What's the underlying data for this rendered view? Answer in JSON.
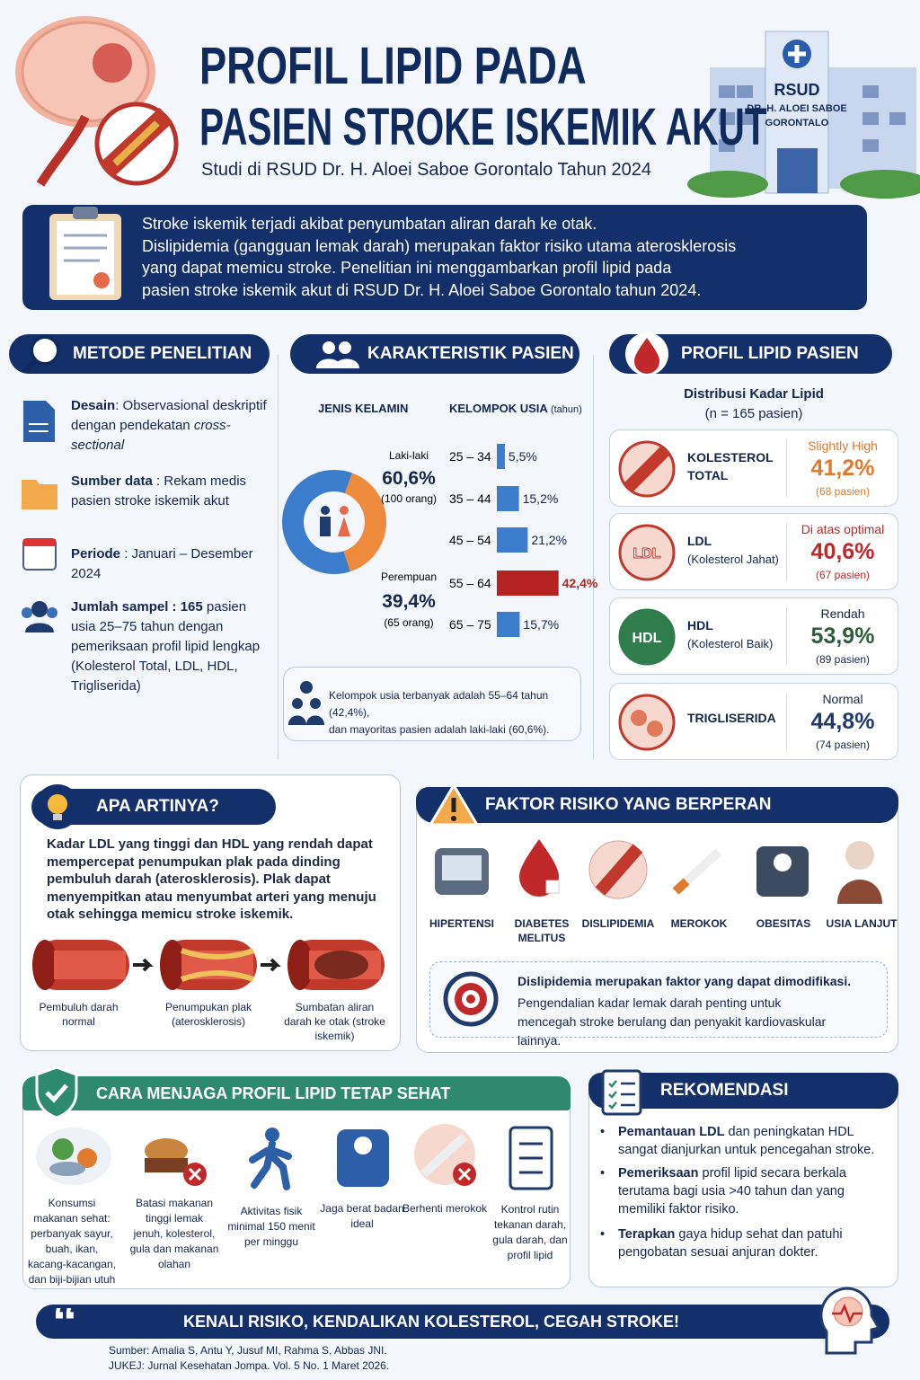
{
  "header": {
    "title_line1": "PROFIL LIPID PADA",
    "title_line2": "PASIEN STROKE ISKEMIK AKUT",
    "subtitle": "Studi di RSUD Dr. H. Aloei Saboe Gorontalo Tahun 2024",
    "hospital": {
      "name": "RSUD",
      "line2": "DR. H. ALOEI SABOE",
      "line3": "GORONTALO"
    }
  },
  "intro": {
    "lines": [
      "Stroke iskemik terjadi akibat penyumbatan aliran darah ke otak.",
      "Dislipidemia (gangguan lemak darah) merupakan faktor risiko utama aterosklerosis",
      "yang dapat memicu stroke. Penelitian ini menggambarkan profil lipid pada",
      "pasien stroke iskemik akut di RSUD Dr. H. Aloei Saboe Gorontalo tahun 2024."
    ]
  },
  "methods": {
    "title": "METODE PENELITIAN",
    "items": [
      {
        "label": "Desain",
        "text": ": Observasional deskriptif dengan pendekatan",
        "italic": "cross-sectional"
      },
      {
        "label": "Sumber data",
        "text": ": Rekam medis pasien stroke iskemik akut"
      },
      {
        "label": "Periode",
        "text": ": Januari – Desember 2024"
      },
      {
        "label": "Jumlah sampel : 165",
        "text": "pasien usia 25–75 tahun dengan pemeriksaan profil lipid lengkap (Kolesterol Total, LDL, HDL, Trigliserida)"
      }
    ]
  },
  "characteristics": {
    "title": "KARAKTERISTIK PASIEN",
    "gender": {
      "heading": "JENIS KELAMIN",
      "segments": [
        {
          "label": "Laki-laki",
          "value": 60.6,
          "value_label": "60,6%",
          "count": "(100 orang)",
          "color": "#3b7ccc"
        },
        {
          "label": "Perempuan",
          "value": 39.4,
          "value_label": "39,4%",
          "count": "(65 orang)",
          "color": "#ee8a3c"
        }
      ]
    },
    "age": {
      "heading": "KELOMPOK USIA",
      "unit": "(tahun)",
      "groups": [
        {
          "range": "25 – 34",
          "value": 5.5,
          "value_label": "5,5%",
          "color": "#3b7ccc",
          "highlight": false
        },
        {
          "range": "35 – 44",
          "value": 15.2,
          "value_label": "15,2%",
          "color": "#3b7ccc",
          "highlight": false
        },
        {
          "range": "45 – 54",
          "value": 21.2,
          "value_label": "21,2%",
          "color": "#3b7ccc",
          "highlight": false
        },
        {
          "range": "55 – 64",
          "value": 42.4,
          "value_label": "42,4%",
          "color": "#b52222",
          "highlight": true
        },
        {
          "range": "65 – 75",
          "value": 15.7,
          "value_label": "15,7%",
          "color": "#3b7ccc",
          "highlight": false
        }
      ]
    },
    "note": [
      "Kelompok usia terbanyak adalah 55–64 tahun (42,4%),",
      "dan mayoritas pasien adalah laki-laki (60,6%)."
    ]
  },
  "lipid": {
    "title": "PROFIL LIPID PASIEN",
    "subtitle": "Distribusi Kadar Lipid",
    "n": "(n = 165 pasien)",
    "cards": [
      {
        "name": "KOLESTEROL",
        "name2": "TOTAL",
        "status": "Slightly High",
        "percent": "41,2%",
        "count": "(68 pasien)",
        "color": "#e07a2e"
      },
      {
        "name": "LDL",
        "sub": "(Kolesterol Jahat)",
        "status": "Di atas optimal",
        "percent": "40,6%",
        "count": "(67 pasien)",
        "color": "#c0282a"
      },
      {
        "name": "HDL",
        "sub": "(Kolesterol Baik)",
        "status": "Rendah",
        "percent": "53,9%",
        "count": "(89 pasien)",
        "color": "#2e5d3a"
      },
      {
        "name": "TRIGLISERIDA",
        "status": "Normal",
        "percent": "44,8%",
        "count": "(74 pasien)",
        "color": "#1f3b6e"
      }
    ]
  },
  "meaning": {
    "title": "APA ARTINYA?",
    "text": "Kadar LDL yang tinggi dan HDL yang rendah dapat mempercepat penumpukan plak pada dinding pembuluh darah (aterosklerosis). Plak dapat menyempitkan atau menyumbat arteri yang menuju otak sehingga memicu stroke iskemik.",
    "stages": [
      "Pembuluh darah normal",
      "Penumpukan plak (aterosklerosis)",
      "Sumbatan aliran darah ke otak (stroke iskemik)"
    ]
  },
  "risk": {
    "title": "FAKTOR RISIKO YANG BERPERAN",
    "factors": [
      "HIPERTENSI",
      "DIABETES MELITUS",
      "DISLIPIDEMIA",
      "MEROKOK",
      "OBESITAS",
      "USIA LANJUT"
    ],
    "note_title": "Dislipidemia merupakan faktor yang dapat dimodifikasi.",
    "note_text": "Pengendalian kadar lemak darah penting untuk mencegah stroke berulang dan penyakit kardiovaskular lainnya."
  },
  "healthy": {
    "title": "CARA MENJAGA PROFIL LIPID TETAP SEHAT",
    "tips": [
      "Konsumsi makanan sehat: perbanyak sayur, buah, ikan, kacang-kacangan, dan biji-bijian utuh",
      "Batasi makanan tinggi lemak jenuh, kolesterol, gula dan makanan olahan",
      "Aktivitas fisik minimal 150 menit per minggu",
      "Jaga berat badan ideal",
      "Berhenti merokok",
      "Kontrol rutin tekanan darah, gula darah, dan profil lipid"
    ]
  },
  "recommendations": {
    "title": "REKOMENDASI",
    "items": [
      {
        "bold": "Pemantauan LDL",
        "text": " dan peningkatan HDL sangat dianjurkan untuk pencegahan stroke."
      },
      {
        "bold": "Pemeriksaan",
        "text": " profil lipid secara berkala terutama bagi usia >40 tahun dan yang memiliki faktor risiko."
      },
      {
        "bold": "Terapkan",
        "text": " gaya hidup sehat dan patuhi pengobatan sesuai anjuran dokter."
      }
    ]
  },
  "footer": {
    "slogan": "KENALI RISIKO, KENDALIKAN KOLESTEROL, CEGAH STROKE!",
    "sources": [
      "Sumber: Amalia S, Antu Y, Jusuf MI, Rahma S, Abbas JNI.",
      "JUKEJ: Jurnal Kesehatan Jompa. Vol. 5 No. 1 Maret 2026."
    ]
  }
}
